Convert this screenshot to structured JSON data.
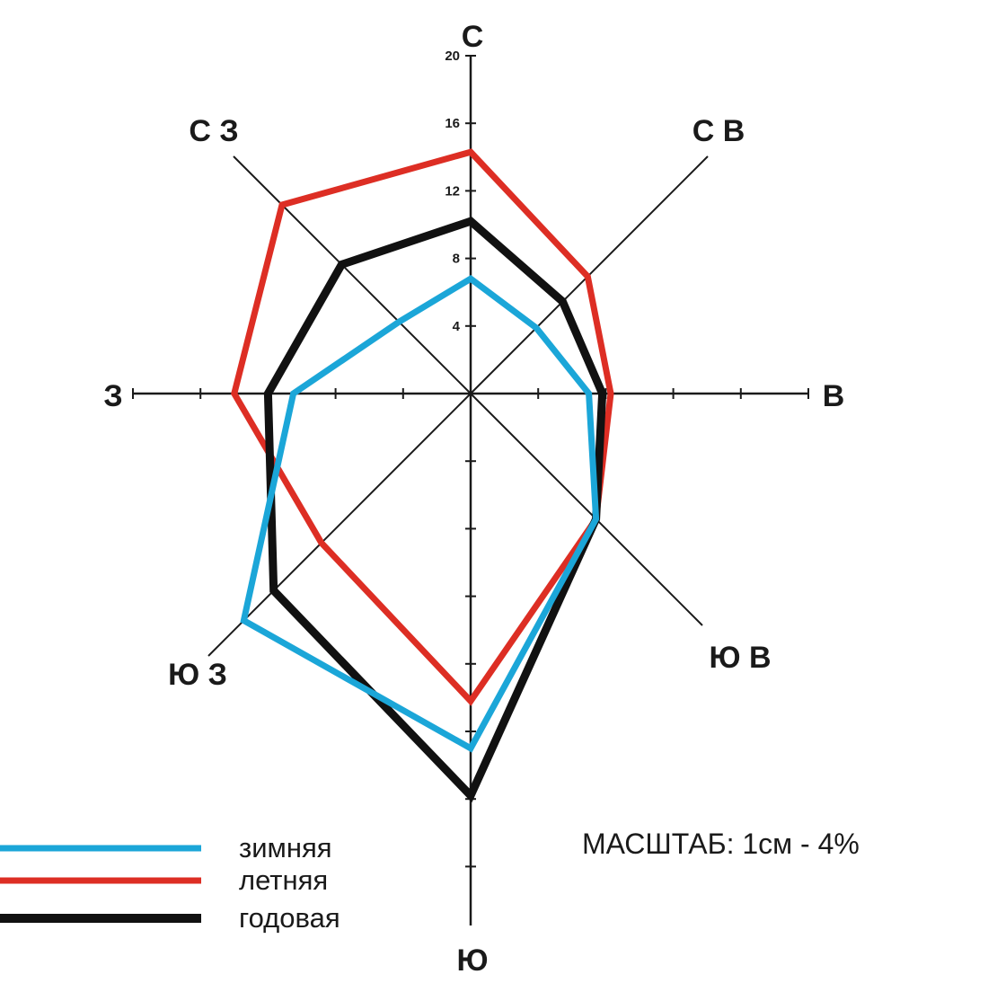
{
  "chart_data": {
    "type": "radar",
    "title": "",
    "directions": [
      "С",
      "С В",
      "В",
      "Ю В",
      "Ю",
      "Ю З",
      "З",
      "С З"
    ],
    "series": [
      {
        "name": "зимняя",
        "color": "#1ba6d8",
        "values": [
          6.8,
          5.5,
          7.0,
          10.5,
          21.0,
          19.0,
          10.5,
          6.0
        ]
      },
      {
        "name": "летняя",
        "color": "#dd2e24",
        "values": [
          14.3,
          9.8,
          8.3,
          10.5,
          18.2,
          12.5,
          14.0,
          15.8
        ]
      },
      {
        "name": "годовая",
        "color": "#111111",
        "values": [
          10.2,
          7.7,
          7.8,
          10.5,
          23.8,
          16.5,
          12.0,
          10.8
        ]
      }
    ],
    "tick_labels": [
      "4",
      "8",
      "12",
      "16",
      "20"
    ],
    "rlim": [
      0,
      20
    ],
    "scale_note": "МАСШТАБ: 1см - 4%",
    "legend_position": "bottom-left"
  }
}
